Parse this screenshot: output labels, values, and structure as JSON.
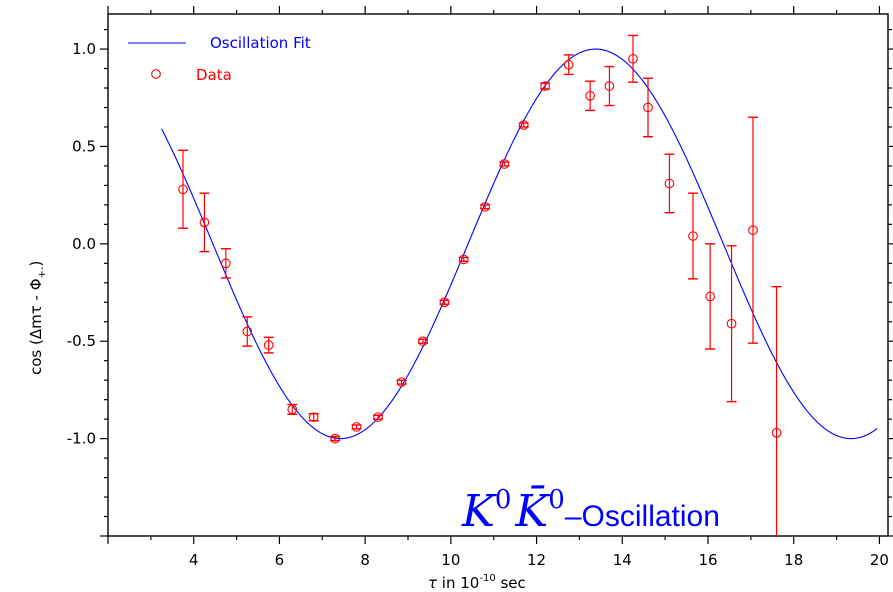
{
  "chart_data": {
    "type": "scatter",
    "title": "",
    "xlabel": "τ in 10⁻¹⁰ sec",
    "xlabel_parts": {
      "symbol": "τ",
      "text": " in 10",
      "exponent": "-10",
      "unit": " sec"
    },
    "ylabel": "cos (Δmτ - Φ+-)",
    "ylabel_parts": {
      "text": "cos (Δmτ - ",
      "phi": "Φ",
      "subscript": "+-",
      "close": ")"
    },
    "xlim": [
      2.0,
      20.2
    ],
    "ylim": [
      -1.5,
      1.18
    ],
    "x_ticks": [
      4,
      6,
      8,
      10,
      12,
      14,
      16,
      18,
      20
    ],
    "x_tick_labels": [
      "4",
      "6",
      "8",
      "10",
      "12",
      "14",
      "16",
      "18",
      "20"
    ],
    "y_ticks": [
      1.0,
      0.5,
      0.0,
      -0.5,
      -1.0
    ],
    "y_tick_labels": [
      "1.0",
      "0.5",
      "0.0",
      "-0.5",
      "-1.0"
    ],
    "grid": false,
    "legend_position": "top-left",
    "annotation": {
      "prefix": "K",
      "sup1": "0",
      "middle": "K̄",
      "sup2": "0",
      "suffix": "–Oscillation"
    },
    "series": [
      {
        "name": "Oscillation Fit",
        "type": "line",
        "color": "#0000ff",
        "model": {
          "amplitude": 1.0,
          "omega": 0.5275,
          "phase_peak": 13.38
        },
        "x_range": [
          3.25,
          19.95
        ]
      },
      {
        "name": "Data",
        "type": "scatter",
        "color": "#ff0000",
        "marker": "open-circle",
        "points": [
          {
            "x": 3.75,
            "y": 0.28,
            "err": 0.2
          },
          {
            "x": 4.25,
            "y": 0.11,
            "err": 0.15
          },
          {
            "x": 4.75,
            "y": -0.1,
            "err": 0.075
          },
          {
            "x": 5.25,
            "y": -0.45,
            "err": 0.075
          },
          {
            "x": 5.75,
            "y": -0.52,
            "err": 0.04
          },
          {
            "x": 6.3,
            "y": -0.85,
            "err": 0.025
          },
          {
            "x": 6.8,
            "y": -0.89,
            "err": 0.018
          },
          {
            "x": 7.3,
            "y": -1.0,
            "err": 0.01
          },
          {
            "x": 7.8,
            "y": -0.94,
            "err": 0.01
          },
          {
            "x": 8.3,
            "y": -0.89,
            "err": 0.01
          },
          {
            "x": 8.85,
            "y": -0.71,
            "err": 0.01
          },
          {
            "x": 9.35,
            "y": -0.5,
            "err": 0.01
          },
          {
            "x": 9.85,
            "y": -0.3,
            "err": 0.01
          },
          {
            "x": 10.3,
            "y": -0.08,
            "err": 0.01
          },
          {
            "x": 10.8,
            "y": 0.19,
            "err": 0.01
          },
          {
            "x": 11.25,
            "y": 0.41,
            "err": 0.01
          },
          {
            "x": 11.7,
            "y": 0.61,
            "err": 0.01
          },
          {
            "x": 12.2,
            "y": 0.81,
            "err": 0.015
          },
          {
            "x": 12.75,
            "y": 0.92,
            "err": 0.05
          },
          {
            "x": 13.25,
            "y": 0.76,
            "err": 0.075
          },
          {
            "x": 13.7,
            "y": 0.81,
            "err": 0.1
          },
          {
            "x": 14.25,
            "y": 0.95,
            "err": 0.12
          },
          {
            "x": 14.6,
            "y": 0.7,
            "err": 0.15
          },
          {
            "x": 15.1,
            "y": 0.31,
            "err": 0.15
          },
          {
            "x": 15.65,
            "y": 0.04,
            "err": 0.22
          },
          {
            "x": 16.05,
            "y": -0.27,
            "err": 0.27
          },
          {
            "x": 16.55,
            "y": -0.41,
            "err": 0.4
          },
          {
            "x": 17.05,
            "y": 0.07,
            "err": 0.58
          },
          {
            "x": 17.6,
            "y": -0.97,
            "err": 0.75
          }
        ]
      }
    ]
  }
}
